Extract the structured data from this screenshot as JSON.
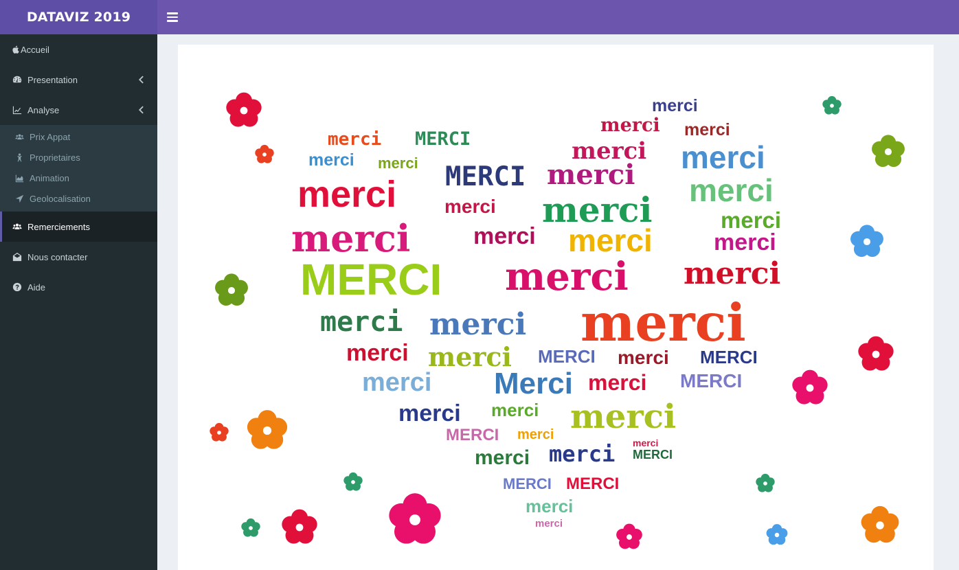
{
  "app": {
    "title": "DATAVIZ 2019"
  },
  "sidebar": {
    "items": [
      {
        "label": "Accueil",
        "icon": "apple-icon"
      },
      {
        "label": "Presentation",
        "icon": "dashboard-icon"
      },
      {
        "label": "Analyse",
        "icon": "line-chart-icon"
      },
      {
        "label": "Remerciements",
        "icon": "users-icon"
      },
      {
        "label": "Nous contacter",
        "icon": "envelope-open-icon"
      },
      {
        "label": "Aide",
        "icon": "question-circle-icon"
      }
    ],
    "analyse_sub": [
      {
        "label": "Prix Appat",
        "icon": "users-icon"
      },
      {
        "label": "Proprietaires",
        "icon": "child-icon"
      },
      {
        "label": "Animation",
        "icon": "area-chart-icon"
      },
      {
        "label": "Geolocalisation",
        "icon": "location-arrow-icon"
      }
    ]
  },
  "wordcloud": {
    "words": [
      {
        "t": "merci",
        "c": "#3b3f8f"
      },
      {
        "t": "merci",
        "c": "#c21848"
      },
      {
        "t": "merci",
        "c": "#9a2a2a"
      },
      {
        "t": "merci",
        "c": "#c2185b"
      },
      {
        "t": "merci",
        "c": "#4a8fd0"
      },
      {
        "t": "merci",
        "c": "#e84c1d"
      },
      {
        "t": "MERCI",
        "c": "#2e8b57"
      },
      {
        "t": "merci",
        "c": "#3a8fd0"
      },
      {
        "t": "merci",
        "c": "#7aa61a"
      },
      {
        "t": "MERCI",
        "c": "#2d3a7a"
      },
      {
        "t": "merci",
        "c": "#b0197e"
      },
      {
        "t": "merci",
        "c": "#66c17a"
      },
      {
        "t": "merci",
        "c": "#e0103a"
      },
      {
        "t": "merci",
        "c": "#c21848"
      },
      {
        "t": "merci",
        "c": "#1e9b55"
      },
      {
        "t": "merci",
        "c": "#5aab2a"
      },
      {
        "t": "merci",
        "c": "#d81b7a"
      },
      {
        "t": "merci",
        "c": "#b0105a"
      },
      {
        "t": "merci",
        "c": "#f0b400"
      },
      {
        "t": "merci",
        "c": "#c2188a"
      },
      {
        "t": "MERCI",
        "c": "#9acd1a"
      },
      {
        "t": "merci",
        "c": "#d8106a"
      },
      {
        "t": "merci",
        "c": "#d01028"
      },
      {
        "t": "merci",
        "c": "#2e7a4a"
      },
      {
        "t": "merci",
        "c": "#4a78b8"
      },
      {
        "t": "merci",
        "c": "#e84020"
      },
      {
        "t": "merci",
        "c": "#cc1030"
      },
      {
        "t": "merci",
        "c": "#9ab81a"
      },
      {
        "t": "MERCI",
        "c": "#5a6ab8"
      },
      {
        "t": "merci",
        "c": "#9a1a2a"
      },
      {
        "t": "MERCI",
        "c": "#2a3a8a"
      },
      {
        "t": "merci",
        "c": "#7aaed8"
      },
      {
        "t": "Merci",
        "c": "#3a7ab8"
      },
      {
        "t": "merci",
        "c": "#d8103a"
      },
      {
        "t": "MERCI",
        "c": "#7a7ac8"
      },
      {
        "t": "merci",
        "c": "#2a3a8a"
      },
      {
        "t": "merci",
        "c": "#5aab2a"
      },
      {
        "t": "merci",
        "c": "#a8c020"
      },
      {
        "t": "MERCI",
        "c": "#c868a8"
      },
      {
        "t": "merci",
        "c": "#f0a000"
      },
      {
        "t": "merci",
        "c": "#2a7a3a"
      },
      {
        "t": "merci",
        "c": "#d01848"
      },
      {
        "t": "merci",
        "c": "#2a3a8a"
      },
      {
        "t": "MERCI",
        "c": "#1e6a3a"
      },
      {
        "t": "MERCI",
        "c": "#6a7ac8"
      },
      {
        "t": "MERCI",
        "c": "#e0103a"
      },
      {
        "t": "merci",
        "c": "#66c19a"
      },
      {
        "t": "merci",
        "c": "#c868a8"
      }
    ]
  }
}
